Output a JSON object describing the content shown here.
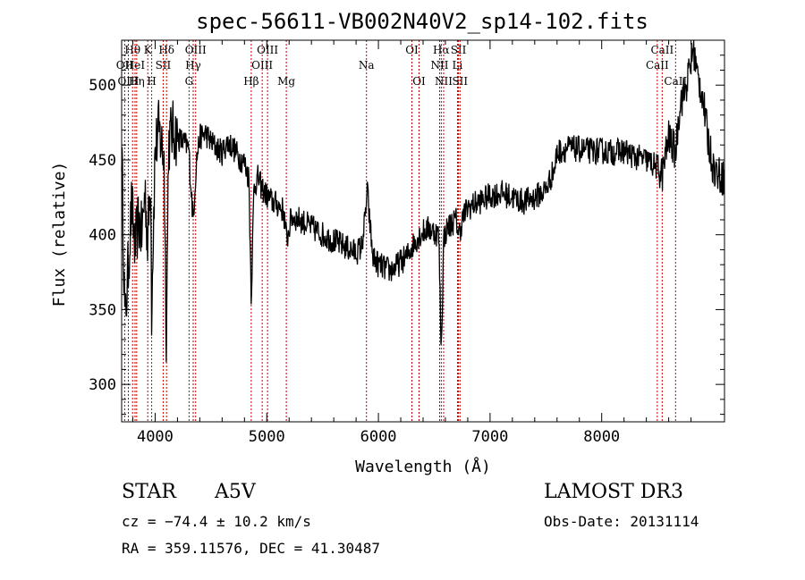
{
  "chart_data": {
    "type": "line",
    "title": "spec-56611-VB002N40V2_sp14-102.fits",
    "xlabel": "Wavelength (Å)",
    "ylabel": "Flux (relative)",
    "xlim": [
      3700,
      9100
    ],
    "ylim": [
      275,
      530
    ],
    "x_ticks": [
      4000,
      5000,
      6000,
      7000,
      8000
    ],
    "y_ticks": [
      300,
      350,
      400,
      450,
      500
    ],
    "continuum_points": [
      [
        3700,
        460
      ],
      [
        3730,
        340
      ],
      [
        3760,
        380
      ],
      [
        3790,
        420
      ],
      [
        3820,
        390
      ],
      [
        3850,
        410
      ],
      [
        3880,
        400
      ],
      [
        3910,
        430
      ],
      [
        3933,
        395
      ],
      [
        3960,
        440
      ],
      [
        3968,
        350
      ],
      [
        4000,
        455
      ],
      [
        4030,
        470
      ],
      [
        4060,
        460
      ],
      [
        4080,
        450
      ],
      [
        4101,
        330
      ],
      [
        4120,
        460
      ],
      [
        4150,
        470
      ],
      [
        4200,
        465
      ],
      [
        4250,
        462
      ],
      [
        4300,
        458
      ],
      [
        4340,
        410
      ],
      [
        4370,
        450
      ],
      [
        4400,
        465
      ],
      [
        4450,
        468
      ],
      [
        4500,
        462
      ],
      [
        4550,
        458
      ],
      [
        4600,
        455
      ],
      [
        4650,
        462
      ],
      [
        4700,
        458
      ],
      [
        4750,
        452
      ],
      [
        4800,
        448
      ],
      [
        4840,
        438
      ],
      [
        4861,
        358
      ],
      [
        4885,
        432
      ],
      [
        4920,
        438
      ],
      [
        4950,
        432
      ],
      [
        5000,
        426
      ],
      [
        5050,
        422
      ],
      [
        5100,
        420
      ],
      [
        5150,
        416
      ],
      [
        5180,
        396
      ],
      [
        5220,
        412
      ],
      [
        5300,
        410
      ],
      [
        5400,
        405
      ],
      [
        5500,
        400
      ],
      [
        5600,
        396
      ],
      [
        5700,
        392
      ],
      [
        5800,
        388
      ],
      [
        5850,
        392
      ],
      [
        5880,
        410
      ],
      [
        5900,
        430
      ],
      [
        5920,
        410
      ],
      [
        5950,
        385
      ],
      [
        6000,
        380
      ],
      [
        6050,
        378
      ],
      [
        6100,
        376
      ],
      [
        6150,
        378
      ],
      [
        6200,
        382
      ],
      [
        6250,
        385
      ],
      [
        6300,
        392
      ],
      [
        6350,
        398
      ],
      [
        6400,
        402
      ],
      [
        6450,
        404
      ],
      [
        6500,
        402
      ],
      [
        6540,
        400
      ],
      [
        6563,
        323
      ],
      [
        6585,
        398
      ],
      [
        6620,
        405
      ],
      [
        6660,
        408
      ],
      [
        6700,
        410
      ],
      [
        6720,
        400
      ],
      [
        6760,
        412
      ],
      [
        6800,
        418
      ],
      [
        6900,
        422
      ],
      [
        7000,
        426
      ],
      [
        7100,
        428
      ],
      [
        7200,
        425
      ],
      [
        7300,
        422
      ],
      [
        7400,
        425
      ],
      [
        7500,
        430
      ],
      [
        7580,
        445
      ],
      [
        7600,
        455
      ],
      [
        7700,
        458
      ],
      [
        7800,
        457
      ],
      [
        7900,
        456
      ],
      [
        8000,
        456
      ],
      [
        8100,
        455
      ],
      [
        8200,
        456
      ],
      [
        8300,
        452
      ],
      [
        8400,
        450
      ],
      [
        8498,
        445
      ],
      [
        8542,
        440
      ],
      [
        8600,
        465
      ],
      [
        8662,
        455
      ],
      [
        8700,
        488
      ],
      [
        8750,
        497
      ],
      [
        8800,
        515
      ],
      [
        8820,
        525
      ],
      [
        8860,
        505
      ],
      [
        8900,
        495
      ],
      [
        8950,
        465
      ],
      [
        9000,
        445
      ],
      [
        9050,
        440
      ],
      [
        9100,
        438
      ]
    ],
    "noise_amplitude": 9,
    "markers": [
      {
        "label": "Hθ",
        "wave": 3798,
        "row": 0
      },
      {
        "label": "OII",
        "wave": 3727,
        "row": 1
      },
      {
        "label": "OIII",
        "wave": 3760,
        "row": 2
      },
      {
        "label": "HeI",
        "wave": 3820,
        "row": 1
      },
      {
        "label": "Hη",
        "wave": 3835,
        "row": 2
      },
      {
        "label": "K",
        "wave": 3934,
        "row": 0
      },
      {
        "label": "SII",
        "wave": 4072,
        "row": 1
      },
      {
        "label": "H",
        "wave": 3969,
        "row": 2
      },
      {
        "label": "Hδ",
        "wave": 4102,
        "row": 0
      },
      {
        "label": "OIII",
        "wave": 4363,
        "row": 0
      },
      {
        "label": "Hγ",
        "wave": 4341,
        "row": 1
      },
      {
        "label": "G",
        "wave": 4304,
        "row": 2
      },
      {
        "label": "Hβ",
        "wave": 4861,
        "row": 2
      },
      {
        "label": "OIII",
        "wave": 5007,
        "row": 0
      },
      {
        "label": "OIII",
        "wave": 4959,
        "row": 1
      },
      {
        "label": "Mg",
        "wave": 5175,
        "row": 2
      },
      {
        "label": "Na",
        "wave": 5893,
        "row": 1
      },
      {
        "label": "OI",
        "wave": 6300,
        "row": 0
      },
      {
        "label": "OI",
        "wave": 6364,
        "row": 2
      },
      {
        "label": "Hα",
        "wave": 6563,
        "row": 0
      },
      {
        "label": "NII",
        "wave": 6548,
        "row": 1
      },
      {
        "label": "NII",
        "wave": 6584,
        "row": 2
      },
      {
        "label": "SII",
        "wave": 6717,
        "row": 0
      },
      {
        "label": "Li",
        "wave": 6708,
        "row": 1
      },
      {
        "label": "SII",
        "wave": 6731,
        "row": 2
      },
      {
        "label": "CaII",
        "wave": 8542,
        "row": 0
      },
      {
        "label": "CaII",
        "wave": 8498,
        "row": 1
      },
      {
        "label": "CaII",
        "wave": 8662,
        "row": 2
      }
    ],
    "colors": {
      "line": "#000000",
      "marker": "#c00000"
    }
  },
  "info": {
    "object_class": "STAR",
    "subclass": "A5V",
    "survey": "LAMOST DR3",
    "redshift": "cz = −74.4 ± 10.2 km/s",
    "obs_date": "Obs-Date: 20131114",
    "coords": "RA = 359.11576, DEC =  41.30487"
  }
}
